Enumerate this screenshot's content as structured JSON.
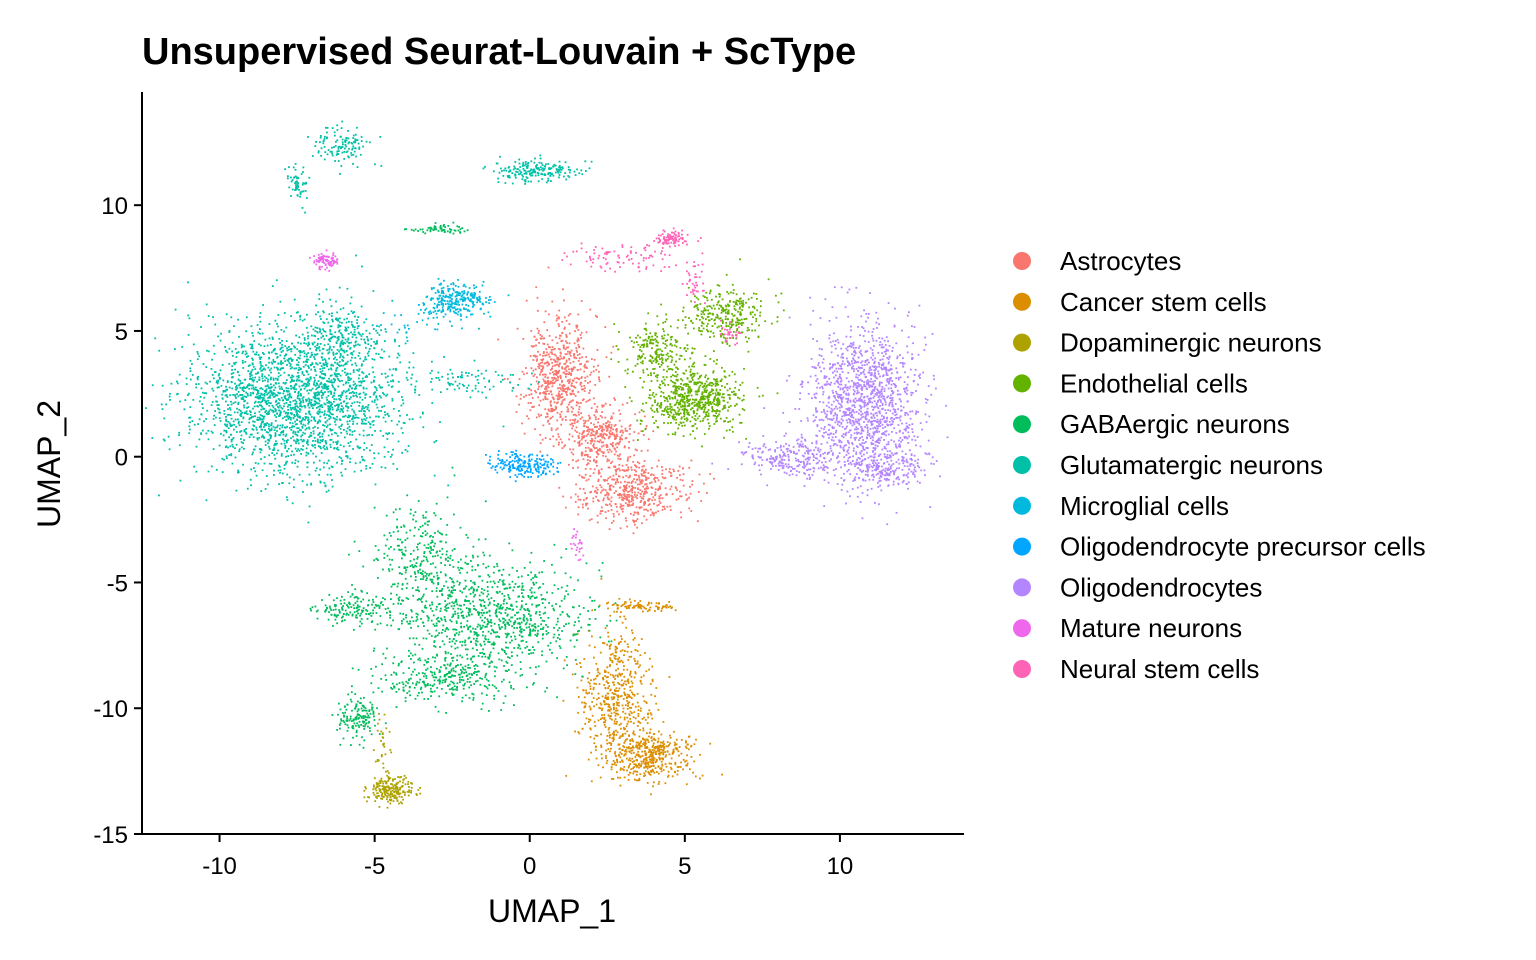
{
  "chart_data": {
    "type": "scatter",
    "title": "Unsupervised Seurat-Louvain  + ScType",
    "xlabel": "UMAP_1",
    "ylabel": "UMAP_2",
    "xlim": [
      -12.5,
      14
    ],
    "ylim": [
      -15,
      14.5
    ],
    "xticks": [
      -10,
      -5,
      0,
      5,
      10
    ],
    "xtick_labels": [
      "-10",
      "-5",
      "0",
      "5",
      "10"
    ],
    "yticks": [
      -15,
      -10,
      -5,
      0,
      5,
      10
    ],
    "ytick_labels": [
      "-15",
      "-10",
      "-5",
      "0",
      "5",
      "10"
    ],
    "grid": false,
    "legend_position": "right",
    "series": [
      {
        "name": "Astrocytes",
        "color": "#F8766D",
        "clusters": [
          {
            "cx": 0.9,
            "cy": 3.2,
            "sx": 0.6,
            "sy": 1.2,
            "n": 600
          },
          {
            "cx": 2.2,
            "cy": 0.8,
            "sx": 0.6,
            "sy": 0.6,
            "n": 350
          },
          {
            "cx": 3.3,
            "cy": -1.3,
            "sx": 0.9,
            "sy": 0.6,
            "n": 500
          }
        ]
      },
      {
        "name": "Cancer stem cells",
        "color": "#DB8E00",
        "clusters": [
          {
            "cx": 2.8,
            "cy": -9.5,
            "sx": 0.6,
            "sy": 1.3,
            "n": 500
          },
          {
            "cx": 3.8,
            "cy": -11.8,
            "sx": 0.7,
            "sy": 0.5,
            "n": 450
          },
          {
            "cx": 3.6,
            "cy": -5.9,
            "sx": 0.6,
            "sy": 0.12,
            "n": 90
          }
        ]
      },
      {
        "name": "Dopaminergic neurons",
        "color": "#AEA200",
        "clusters": [
          {
            "cx": -4.5,
            "cy": -13.2,
            "sx": 0.35,
            "sy": 0.25,
            "n": 220
          },
          {
            "cx": -4.8,
            "cy": -11.5,
            "sx": 0.15,
            "sy": 0.6,
            "n": 30
          }
        ]
      },
      {
        "name": "Endothelial cells",
        "color": "#64B200",
        "clusters": [
          {
            "cx": 5.3,
            "cy": 2.3,
            "sx": 0.8,
            "sy": 0.6,
            "n": 650
          },
          {
            "cx": 4.0,
            "cy": 4.2,
            "sx": 0.5,
            "sy": 0.6,
            "n": 200
          },
          {
            "cx": 6.3,
            "cy": 5.6,
            "sx": 0.7,
            "sy": 0.6,
            "n": 300
          }
        ]
      },
      {
        "name": "GABAergic neurons",
        "color": "#00BD5C",
        "clusters": [
          {
            "cx": -1.2,
            "cy": -6.3,
            "sx": 1.5,
            "sy": 1.1,
            "n": 900
          },
          {
            "cx": -3.5,
            "cy": -4.0,
            "sx": 0.8,
            "sy": 1.1,
            "n": 300
          },
          {
            "cx": -5.8,
            "cy": -6.0,
            "sx": 0.6,
            "sy": 0.3,
            "n": 150
          },
          {
            "cx": -2.8,
            "cy": -8.8,
            "sx": 1.2,
            "sy": 0.5,
            "n": 300
          },
          {
            "cx": -5.6,
            "cy": -10.3,
            "sx": 0.3,
            "sy": 0.4,
            "n": 150
          },
          {
            "cx": -3.0,
            "cy": 9.1,
            "sx": 0.4,
            "sy": 0.1,
            "n": 60
          }
        ]
      },
      {
        "name": "Glutamatergic neurons",
        "color": "#00C1A7",
        "clusters": [
          {
            "cx": -7.5,
            "cy": 2.3,
            "sx": 1.7,
            "sy": 1.5,
            "n": 2200
          },
          {
            "cx": -6.2,
            "cy": 4.8,
            "sx": 0.6,
            "sy": 0.6,
            "n": 200
          },
          {
            "cx": 0.2,
            "cy": 11.4,
            "sx": 0.7,
            "sy": 0.2,
            "n": 200
          },
          {
            "cx": -6.0,
            "cy": 12.4,
            "sx": 0.5,
            "sy": 0.4,
            "n": 120
          },
          {
            "cx": -7.5,
            "cy": 10.9,
            "sx": 0.2,
            "sy": 0.4,
            "n": 60
          },
          {
            "cx": -2.0,
            "cy": 3.0,
            "sx": 1.0,
            "sy": 0.25,
            "n": 80
          }
        ]
      },
      {
        "name": "Microglial cells",
        "color": "#00BADE",
        "clusters": [
          {
            "cx": -2.4,
            "cy": 6.3,
            "sx": 0.5,
            "sy": 0.35,
            "n": 250
          },
          {
            "cx": -3.6,
            "cy": 5.5,
            "sx": 0.8,
            "sy": 0.4,
            "n": 40
          }
        ]
      },
      {
        "name": "Oligodendrocyte precursor cells",
        "color": "#00A6FF",
        "clusters": [
          {
            "cx": -0.2,
            "cy": -0.3,
            "sx": 0.55,
            "sy": 0.25,
            "n": 200
          }
        ]
      },
      {
        "name": "Oligodendrocytes",
        "color": "#B385FF",
        "clusters": [
          {
            "cx": 10.8,
            "cy": 2.3,
            "sx": 0.9,
            "sy": 1.5,
            "n": 1300
          },
          {
            "cx": 11.5,
            "cy": -0.5,
            "sx": 0.7,
            "sy": 0.4,
            "n": 200
          },
          {
            "cx": 8.5,
            "cy": 0.0,
            "sx": 0.9,
            "sy": 0.35,
            "n": 250
          }
        ]
      },
      {
        "name": "Mature neurons",
        "color": "#EF67EB",
        "clusters": [
          {
            "cx": -6.6,
            "cy": 7.8,
            "sx": 0.2,
            "sy": 0.15,
            "n": 90
          },
          {
            "cx": 1.5,
            "cy": -3.5,
            "sx": 0.1,
            "sy": 0.4,
            "n": 25
          }
        ]
      },
      {
        "name": "Neural stem cells",
        "color": "#FF63B6",
        "clusters": [
          {
            "cx": 4.5,
            "cy": 8.7,
            "sx": 0.25,
            "sy": 0.15,
            "n": 90
          },
          {
            "cx": 3.0,
            "cy": 8.0,
            "sx": 0.8,
            "sy": 0.3,
            "n": 90
          },
          {
            "cx": 5.3,
            "cy": 7.0,
            "sx": 0.2,
            "sy": 0.6,
            "n": 40
          },
          {
            "cx": 6.5,
            "cy": 4.9,
            "sx": 0.2,
            "sy": 0.2,
            "n": 30
          }
        ]
      }
    ]
  }
}
